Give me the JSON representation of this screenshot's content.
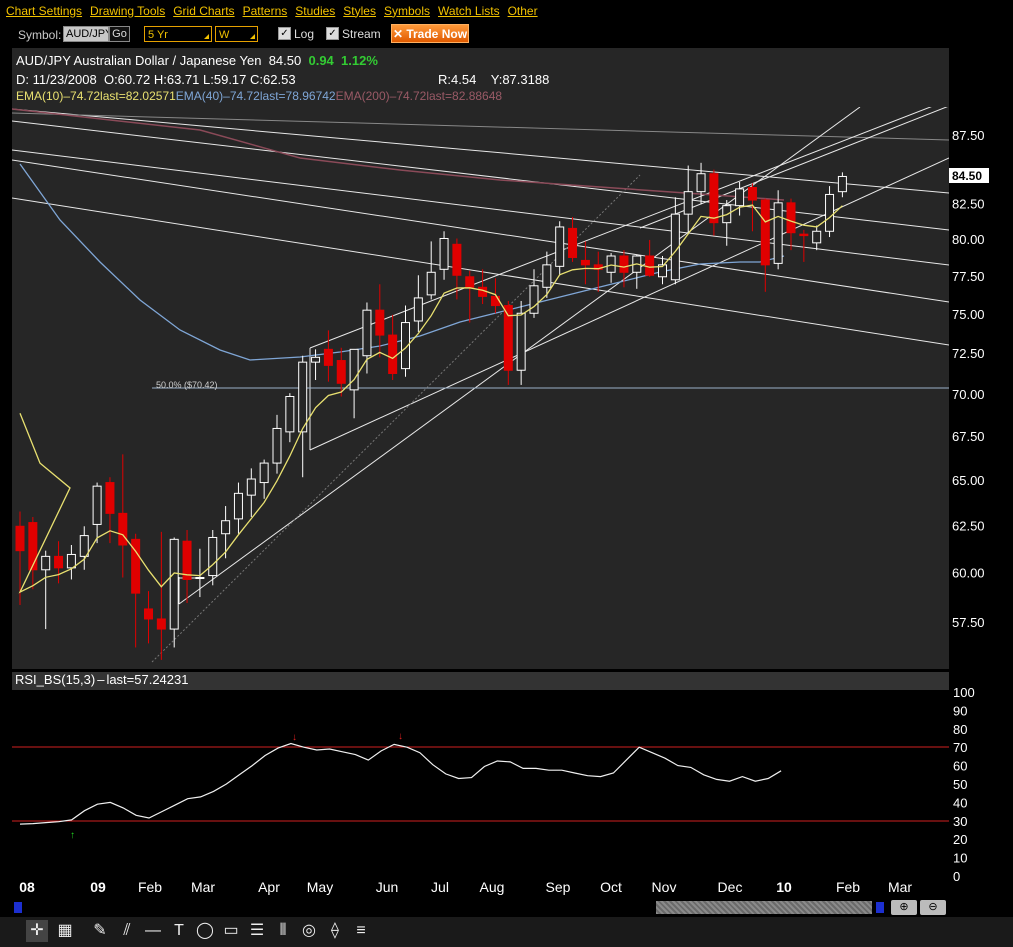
{
  "menu": [
    "Chart Settings",
    "Drawing Tools",
    "Grid Charts",
    "Patterns",
    "Studies",
    "Styles",
    "Symbols",
    "Watch Lists",
    "Other"
  ],
  "toolbar": {
    "symbol_label": "Symbol:",
    "symbol_value": "AUD/JPY",
    "go_label": "Go",
    "range_value": "5 Yr",
    "interval_value": "W",
    "log_label": "Log",
    "log_checked": "✓",
    "stream_label": "Stream",
    "stream_checked": "✓",
    "trade_label": "Trade Now"
  },
  "header": {
    "title": "AUD/JPY Australian Dollar / Japanese Yen",
    "last": "84.50",
    "change": "0.94",
    "change_pct": "1.12%",
    "date": "D: 11/23/2008",
    "open": "O:60.72",
    "high": "H:63.71",
    "low": "L:59.17",
    "close": "C:62.53",
    "r": "R:4.54",
    "y": "Y:87.3188",
    "ema10": "EMA(10)",
    "ema10_vals": "74.72last=82.02571",
    "ema40": "EMA(40)",
    "ema40_vals": "74.72last=78.96742",
    "ema200": "EMA(200)",
    "ema200_vals": "74.72last=82.88648",
    "colors": {
      "up": "#ffffff",
      "down": "#e00000",
      "ema10": "#e8e070",
      "ema40": "#7fa6d6",
      "ema200": "#b06070",
      "change": "#33cc33"
    }
  },
  "fib_label": "50.0%  ($70.42)",
  "price_tag": "84.50",
  "rsi": {
    "label": "RSI_BS(15,3)",
    "last": "last=57.24231",
    "levels": [
      70,
      30
    ]
  },
  "chart_data": {
    "type": "candlestick",
    "log_scale": true,
    "y_ticks": [
      "87.50",
      "82.50",
      "80.00",
      "77.50",
      "75.00",
      "72.50",
      "70.00",
      "67.50",
      "65.00",
      "62.50",
      "60.00",
      "57.50"
    ],
    "x_ticks": [
      "08",
      "09",
      "Feb",
      "Mar",
      "Apr",
      "May",
      "Jun",
      "Jul",
      "Aug",
      "Sep",
      "Oct",
      "Nov",
      "Dec",
      "10",
      "Feb",
      "Mar"
    ],
    "ylim": [
      55.5,
      90.0
    ],
    "candles": [
      {
        "o": 62.5,
        "h": 63.3,
        "l": 58.4,
        "c": 61.2
      },
      {
        "o": 62.7,
        "h": 63.0,
        "l": 59.2,
        "c": 60.2
      },
      {
        "o": 60.2,
        "h": 61.2,
        "l": 57.2,
        "c": 60.9
      },
      {
        "o": 60.9,
        "h": 61.7,
        "l": 59.5,
        "c": 60.3
      },
      {
        "o": 60.3,
        "h": 61.5,
        "l": 59.7,
        "c": 61.0
      },
      {
        "o": 60.9,
        "h": 62.5,
        "l": 60.2,
        "c": 62.0
      },
      {
        "o": 62.6,
        "h": 64.9,
        "l": 61.6,
        "c": 64.7
      },
      {
        "o": 64.9,
        "h": 65.2,
        "l": 61.6,
        "c": 63.2
      },
      {
        "o": 63.2,
        "h": 66.5,
        "l": 59.8,
        "c": 61.5
      },
      {
        "o": 61.8,
        "h": 62.1,
        "l": 56.3,
        "c": 59.0
      },
      {
        "o": 58.2,
        "h": 59.1,
        "l": 56.5,
        "c": 57.7
      },
      {
        "o": 57.7,
        "h": 62.2,
        "l": 55.7,
        "c": 57.2
      },
      {
        "o": 57.2,
        "h": 61.9,
        "l": 56.3,
        "c": 61.8
      },
      {
        "o": 61.7,
        "h": 62.3,
        "l": 58.5,
        "c": 59.7
      },
      {
        "o": 59.8,
        "h": 61.3,
        "l": 58.8,
        "c": 59.8
      },
      {
        "o": 59.9,
        "h": 62.3,
        "l": 59.4,
        "c": 61.9
      },
      {
        "o": 62.1,
        "h": 63.6,
        "l": 60.8,
        "c": 62.8
      },
      {
        "o": 62.9,
        "h": 64.9,
        "l": 62.1,
        "c": 64.3
      },
      {
        "o": 64.2,
        "h": 65.7,
        "l": 63.0,
        "c": 65.1
      },
      {
        "o": 64.9,
        "h": 66.2,
        "l": 64.0,
        "c": 66.0
      },
      {
        "o": 66.0,
        "h": 68.8,
        "l": 65.4,
        "c": 68.0
      },
      {
        "o": 67.8,
        "h": 70.1,
        "l": 67.2,
        "c": 69.9
      },
      {
        "o": 67.8,
        "h": 72.4,
        "l": 65.2,
        "c": 72.0
      },
      {
        "o": 72.0,
        "h": 72.8,
        "l": 70.9,
        "c": 72.3
      },
      {
        "o": 72.8,
        "h": 74.0,
        "l": 70.8,
        "c": 71.8
      },
      {
        "o": 72.1,
        "h": 72.9,
        "l": 69.9,
        "c": 70.7
      },
      {
        "o": 70.3,
        "h": 72.7,
        "l": 68.6,
        "c": 72.8
      },
      {
        "o": 72.4,
        "h": 75.8,
        "l": 71.3,
        "c": 75.3
      },
      {
        "o": 75.3,
        "h": 77.0,
        "l": 72.3,
        "c": 73.7
      },
      {
        "o": 73.7,
        "h": 75.0,
        "l": 70.9,
        "c": 71.3
      },
      {
        "o": 71.6,
        "h": 75.6,
        "l": 71.1,
        "c": 74.5
      },
      {
        "o": 74.6,
        "h": 77.6,
        "l": 73.9,
        "c": 76.1
      },
      {
        "o": 76.3,
        "h": 79.9,
        "l": 76.0,
        "c": 77.8
      },
      {
        "o": 78.0,
        "h": 80.6,
        "l": 77.3,
        "c": 80.1
      },
      {
        "o": 79.7,
        "h": 80.1,
        "l": 76.0,
        "c": 77.6
      },
      {
        "o": 77.5,
        "h": 77.9,
        "l": 74.5,
        "c": 76.8
      },
      {
        "o": 76.8,
        "h": 78.0,
        "l": 75.7,
        "c": 76.2
      },
      {
        "o": 76.2,
        "h": 77.4,
        "l": 75.1,
        "c": 75.6
      },
      {
        "o": 75.6,
        "h": 75.9,
        "l": 70.6,
        "c": 71.5
      },
      {
        "o": 71.5,
        "h": 75.9,
        "l": 70.6,
        "c": 75.1
      },
      {
        "o": 75.1,
        "h": 78.0,
        "l": 74.8,
        "c": 76.9
      },
      {
        "o": 76.8,
        "h": 79.2,
        "l": 76.1,
        "c": 78.3
      },
      {
        "o": 78.2,
        "h": 81.3,
        "l": 77.6,
        "c": 80.9
      },
      {
        "o": 80.8,
        "h": 81.6,
        "l": 78.5,
        "c": 78.8
      },
      {
        "o": 78.6,
        "h": 79.9,
        "l": 77.0,
        "c": 78.3
      },
      {
        "o": 78.3,
        "h": 79.2,
        "l": 76.5,
        "c": 78.0
      },
      {
        "o": 77.8,
        "h": 79.1,
        "l": 77.1,
        "c": 78.9
      },
      {
        "o": 78.9,
        "h": 79.3,
        "l": 76.8,
        "c": 77.8
      },
      {
        "o": 77.8,
        "h": 79.0,
        "l": 76.7,
        "c": 78.9
      },
      {
        "o": 78.9,
        "h": 80.0,
        "l": 77.5,
        "c": 77.6
      },
      {
        "o": 77.5,
        "h": 78.9,
        "l": 77.0,
        "c": 78.3
      },
      {
        "o": 77.3,
        "h": 83.0,
        "l": 77.0,
        "c": 81.8
      },
      {
        "o": 81.8,
        "h": 85.3,
        "l": 80.4,
        "c": 83.4
      },
      {
        "o": 83.4,
        "h": 85.5,
        "l": 82.5,
        "c": 84.7
      },
      {
        "o": 84.7,
        "h": 85.0,
        "l": 80.3,
        "c": 81.2
      },
      {
        "o": 81.2,
        "h": 82.8,
        "l": 79.6,
        "c": 82.4
      },
      {
        "o": 82.4,
        "h": 84.1,
        "l": 81.7,
        "c": 83.6
      },
      {
        "o": 83.7,
        "h": 84.0,
        "l": 80.6,
        "c": 82.8
      },
      {
        "o": 82.8,
        "h": 82.9,
        "l": 76.5,
        "c": 78.3
      },
      {
        "o": 78.4,
        "h": 83.5,
        "l": 78.0,
        "c": 82.6
      },
      {
        "o": 82.6,
        "h": 82.9,
        "l": 79.3,
        "c": 80.5
      },
      {
        "o": 80.4,
        "h": 80.7,
        "l": 78.5,
        "c": 80.3
      },
      {
        "o": 79.8,
        "h": 81.0,
        "l": 79.3,
        "c": 80.6
      },
      {
        "o": 80.6,
        "h": 83.8,
        "l": 80.2,
        "c": 83.2
      },
      {
        "o": 83.4,
        "h": 84.8,
        "l": 83.0,
        "c": 84.5
      }
    ],
    "ema10": [
      59.0,
      60.5,
      62.0,
      62.5,
      63.2,
      64.1,
      64.4,
      63.7,
      62.6,
      61.6,
      61.3,
      61.3,
      61.4,
      62.2,
      62.8,
      63.3,
      63.9,
      64.8,
      65.8,
      66.8,
      67.9,
      69.1,
      70.2,
      71.1,
      71.9,
      72.7,
      73.3,
      73.9,
      74.6,
      75.3,
      75.9,
      76.2,
      76.4,
      76.3,
      76.6,
      77.0,
      77.3,
      77.6,
      77.8,
      78.0,
      78.0,
      78.1,
      78.2,
      78.4,
      78.8,
      79.2,
      79.7,
      80.0,
      80.3,
      80.4,
      80.6,
      80.9,
      81.1,
      81.2,
      81.2,
      81.5,
      82.0
    ],
    "ema10_x": [
      4,
      7,
      10,
      12,
      14,
      16,
      18,
      20,
      22,
      24,
      26,
      28,
      30,
      32,
      34,
      36,
      38,
      40,
      42,
      44,
      46,
      48,
      50,
      52,
      54,
      56,
      58,
      60,
      62,
      64,
      66,
      68,
      70,
      72,
      74,
      76,
      78,
      80,
      82,
      84,
      86,
      88,
      90,
      92,
      94,
      96,
      98,
      100,
      102,
      104,
      106,
      108,
      110,
      112,
      114,
      116,
      118
    ],
    "ema40_note": "overlay line",
    "rsi_values": [
      28.2,
      28.5,
      29.0,
      29.5,
      30.5,
      35.5,
      39.0,
      40.0,
      37.0,
      33.0,
      31.5,
      35.0,
      38.5,
      42.0,
      43.0,
      46.0,
      50.0,
      55.0,
      60.0,
      65.5,
      69.5,
      72.0,
      70.0,
      68.5,
      69.0,
      67.5,
      66.0,
      63.0,
      68.0,
      71.5,
      70.0,
      67.0,
      60.5,
      55.5,
      53.0,
      53.5,
      59.5,
      62.5,
      62.0,
      58.5,
      58.5,
      57.5,
      57.5,
      56.0,
      54.5,
      54.0,
      56.0,
      63.0,
      70.0,
      67.0,
      64.0,
      60.0,
      59.0,
      55.0,
      52.5,
      51.5,
      54.0,
      51.5,
      53.0,
      57.2
    ],
    "rsi_ylim": [
      0,
      100
    ],
    "rsi_y_ticks": [
      "100",
      "90",
      "80",
      "70",
      "60",
      "50",
      "40",
      "30",
      "20",
      "10",
      "0"
    ]
  }
}
